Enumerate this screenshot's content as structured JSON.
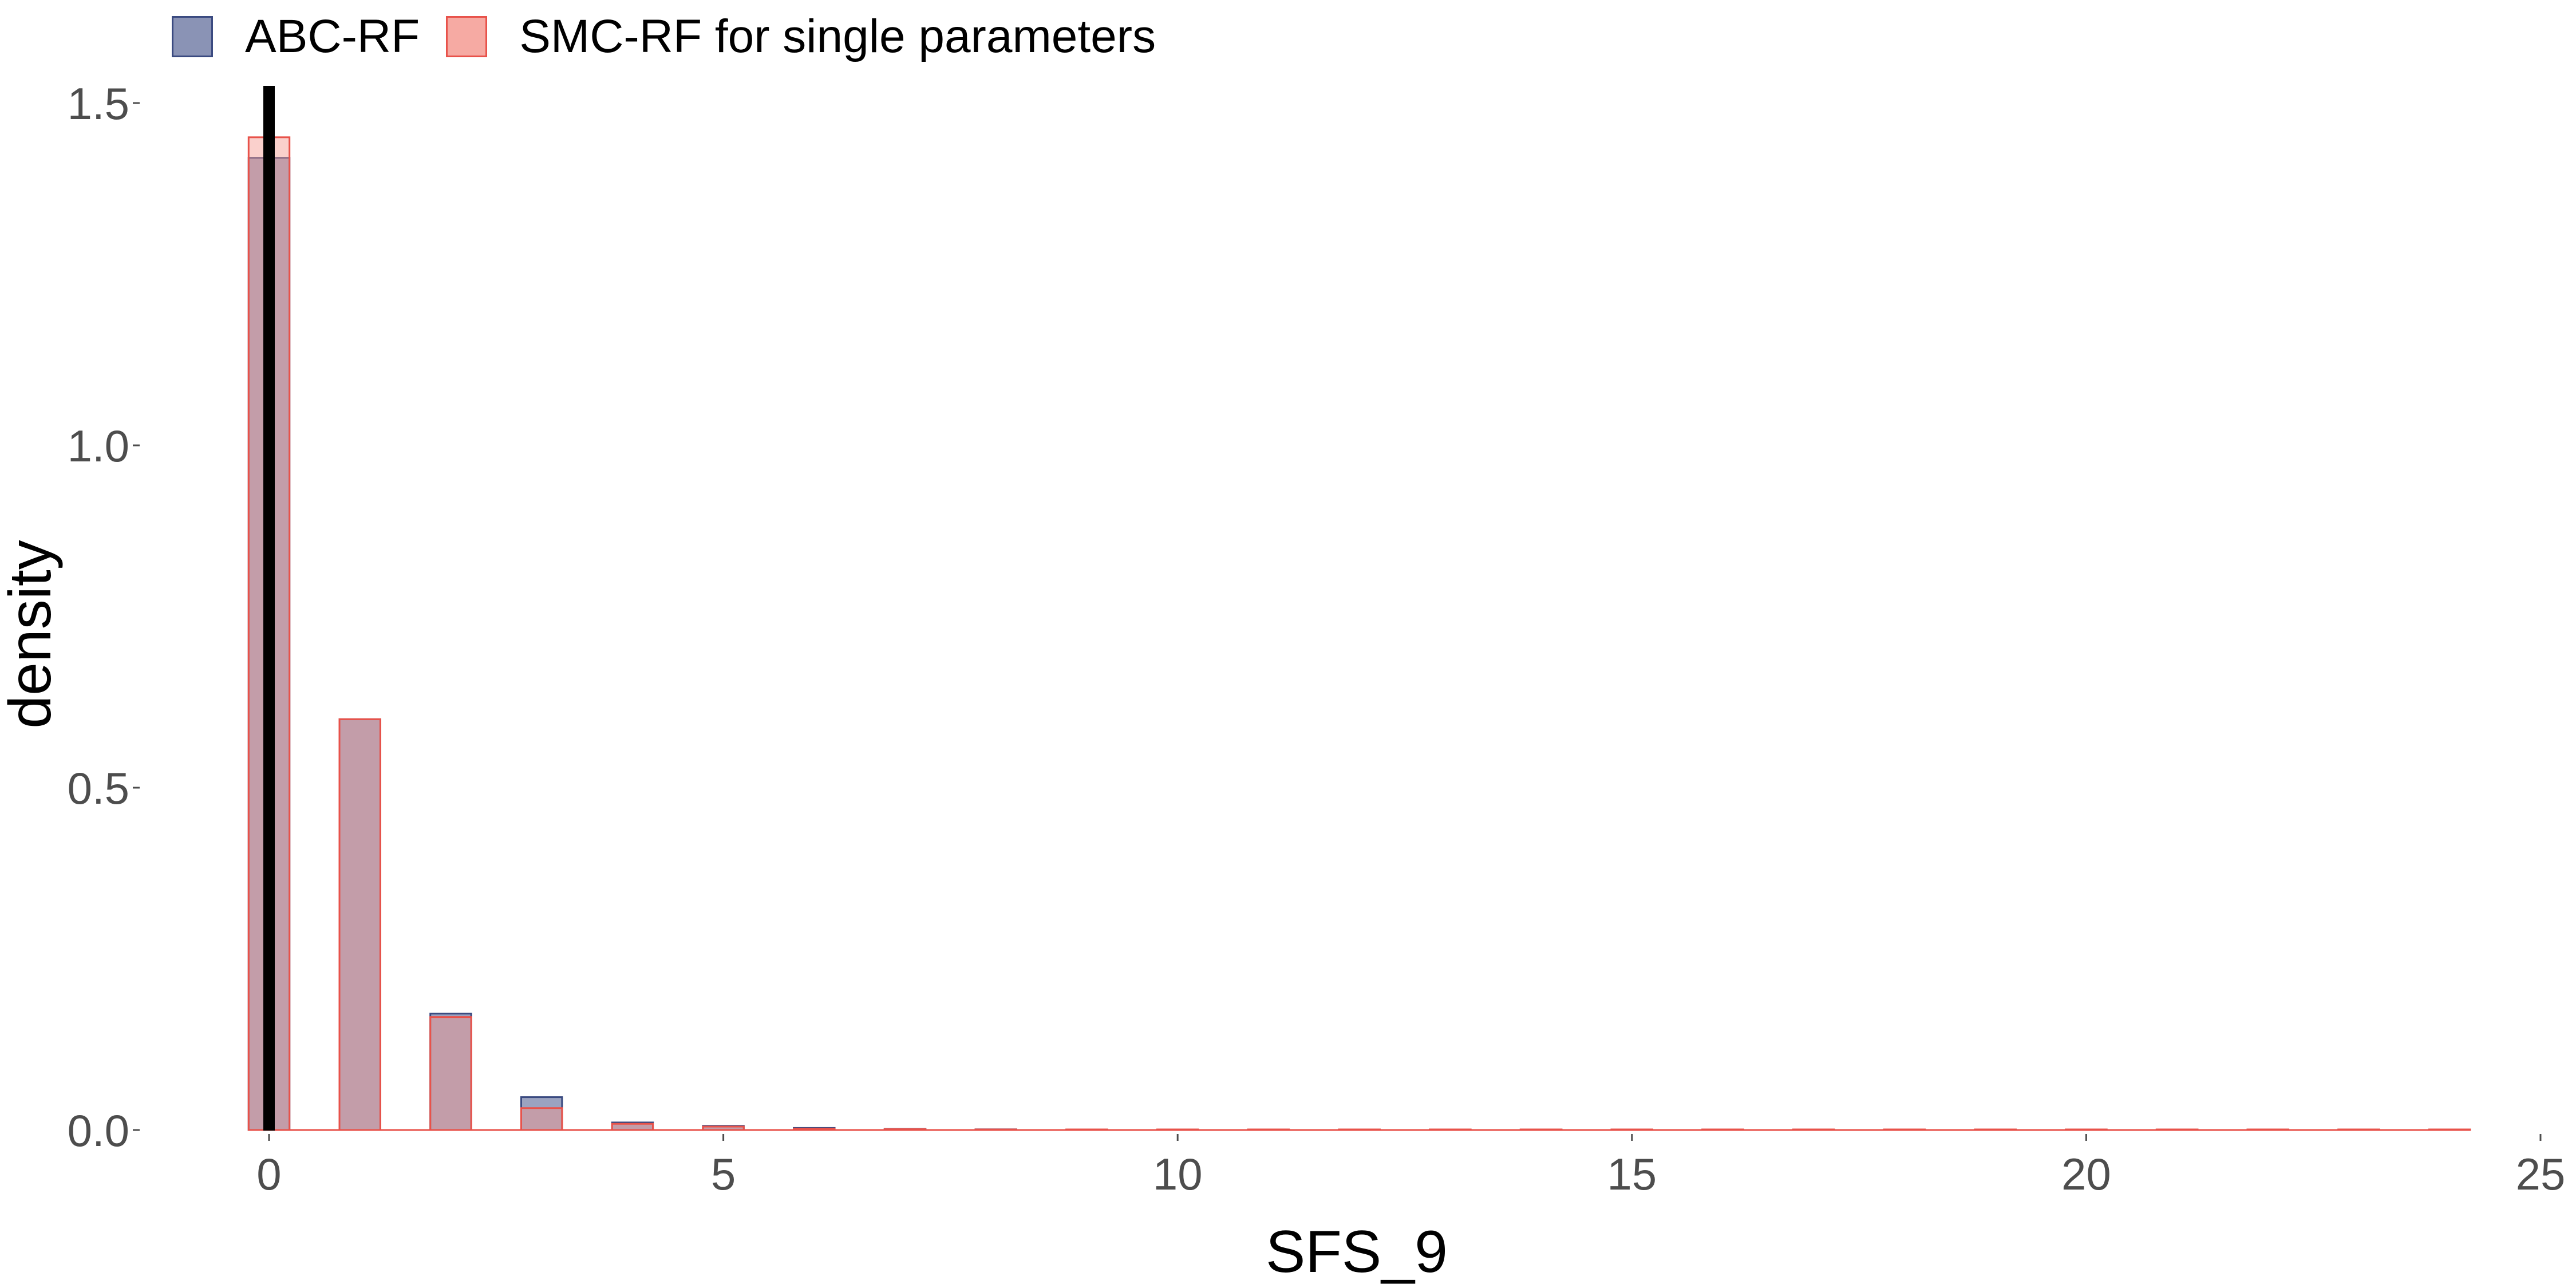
{
  "chart_data": {
    "type": "bar",
    "title": "",
    "xlabel": "SFS_9",
    "ylabel": "density",
    "xlim": [
      -0.6,
      25
    ],
    "ylim": [
      0,
      1.5
    ],
    "x_ticks": [
      0,
      5,
      10,
      15,
      20,
      25
    ],
    "x_tick_labels": [
      "0",
      "5",
      "10",
      "15",
      "20",
      "25"
    ],
    "y_ticks": [
      0.0,
      0.5,
      1.0,
      1.5
    ],
    "y_tick_labels": [
      "0.0",
      "0.5",
      "1.0",
      "1.5"
    ],
    "bin_width": 0.45,
    "grid": false,
    "legend_position": "top-left",
    "reference_line": {
      "x": 0,
      "color": "#000000"
    },
    "x": [
      0,
      1,
      2,
      3,
      4,
      5,
      6,
      7,
      8,
      9,
      10,
      11,
      12,
      13,
      14,
      15,
      16,
      17,
      18,
      19,
      20,
      21,
      22,
      23,
      24
    ],
    "series": [
      {
        "name": "ABC-RF",
        "fill": "#8a93b5",
        "fill_opacity": 0.85,
        "stroke": "#3a4a80",
        "values": [
          1.42,
          0.6,
          0.17,
          0.048,
          0.011,
          0.006,
          0.003,
          0.0015,
          0.001,
          0.0006,
          0.0004,
          0.0003,
          0.0002,
          0.0002,
          0.0001,
          0.0001,
          0,
          0,
          0,
          0,
          0,
          0,
          0,
          0,
          0
        ]
      },
      {
        "name": "SMC-RF for single parameters",
        "fill": "#f4978e",
        "fill_opacity": 0.45,
        "stroke": "#e8524a",
        "values": [
          1.45,
          0.6,
          0.165,
          0.032,
          0.009,
          0.005,
          0.002,
          0.0012,
          0.0008,
          0.0005,
          0.0003,
          0.0002,
          0.0002,
          0.0001,
          0.0001,
          0.0001,
          0,
          0,
          0,
          0,
          0,
          0,
          0,
          0,
          0
        ]
      }
    ]
  },
  "legend": {
    "items": [
      {
        "label": "ABC-RF",
        "fill": "#8a93b5",
        "stroke": "#3a4a80"
      },
      {
        "label": "SMC-RF for single parameters",
        "fill": "#f6aaa3",
        "stroke": "#e8524a"
      }
    ]
  }
}
